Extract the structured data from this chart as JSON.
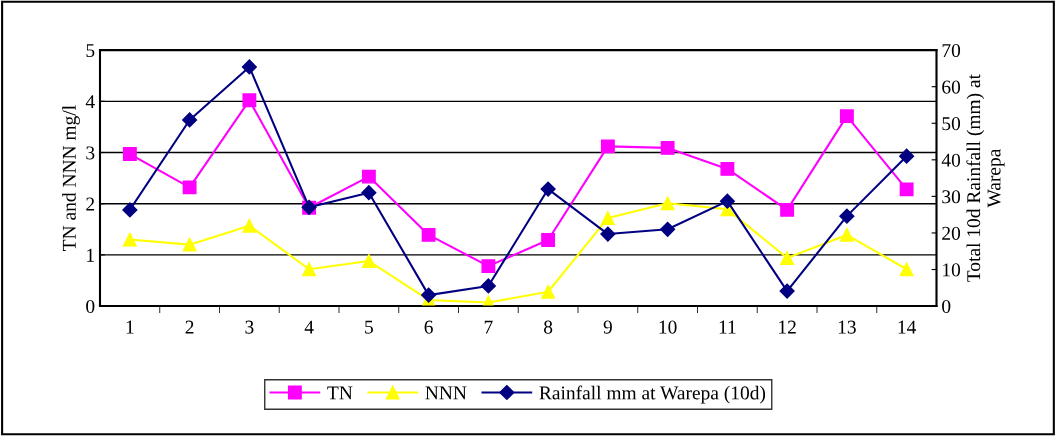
{
  "chart_data": {
    "type": "line",
    "categories": [
      "1",
      "2",
      "3",
      "4",
      "5",
      "6",
      "7",
      "8",
      "9",
      "10",
      "11",
      "12",
      "13",
      "14"
    ],
    "ylabel": "TN and NNN mg/l",
    "y2label": "Total 10d Rainfall (mm) at\nWarepa",
    "ylim": [
      0,
      5
    ],
    "yticks": [
      0,
      1,
      2,
      3,
      4,
      5
    ],
    "y2lim": [
      0,
      70
    ],
    "y2ticks": [
      0,
      10,
      20,
      30,
      40,
      50,
      60,
      70
    ],
    "grid": "y",
    "legend": "bottom",
    "series": [
      {
        "name": "TN",
        "color": "#ff00ff",
        "marker": "square",
        "values": [
          2.97,
          2.32,
          4.02,
          1.92,
          2.53,
          1.39,
          0.78,
          1.29,
          3.12,
          3.09,
          2.68,
          1.88,
          3.71,
          2.28
        ]
      },
      {
        "name": "NNN",
        "color": "#ffff00",
        "marker": "triangle",
        "values": [
          1.3,
          1.2,
          1.57,
          0.72,
          0.88,
          0.12,
          0.07,
          0.28,
          1.72,
          2.01,
          1.89,
          0.94,
          1.39,
          0.72
        ]
      },
      {
        "name": "Rainfall mm at Warepa (10d)",
        "color": "#000080",
        "marker": "diamond",
        "axis": "y2",
        "values": [
          26.3,
          50.9,
          65.4,
          27,
          31,
          3,
          5.5,
          32,
          19.7,
          21,
          28.7,
          4.1,
          24.6,
          41
        ]
      }
    ]
  }
}
